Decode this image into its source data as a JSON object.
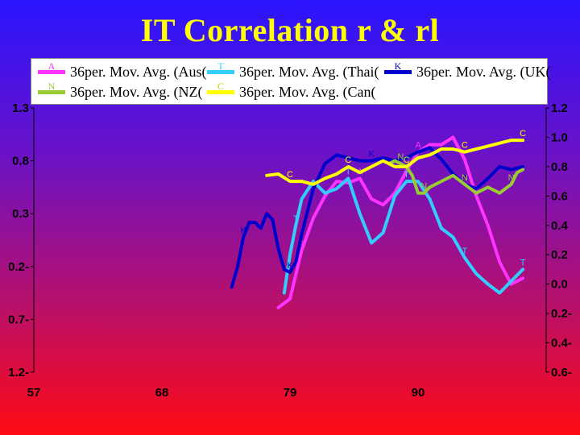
{
  "title": "IT Correlation r & rl",
  "legend": [
    {
      "label": "36per. Mov. Avg. (Aus(",
      "color": "#ff33ff",
      "marker": "A"
    },
    {
      "label": "36per. Mov. Avg. (Thai(",
      "color": "#33ccff",
      "marker": "T"
    },
    {
      "label": "36per. Mov. Avg. (UK(",
      "color": "#0000cc",
      "marker": "K"
    },
    {
      "label": "36per. Mov. Avg. (NZ(",
      "color": "#99cc33",
      "marker": "N"
    },
    {
      "label": "36per. Mov. Avg. (Can(",
      "color": "#ffff00",
      "marker": "C"
    }
  ],
  "chart_data": {
    "type": "line",
    "title": "IT Correlation r & rl",
    "left_axis_ticks": [
      "1.3",
      "0.8",
      "0.3",
      "0.2-",
      "0.7-",
      "1.2-"
    ],
    "right_axis_ticks": [
      "1.2",
      "1.0",
      "0.8",
      "0.6",
      "0.4",
      "0.2",
      "0.0",
      "0.2-",
      "0.4-",
      "0.6-"
    ],
    "x_tick_labels": [
      "57",
      "68",
      "79",
      "90"
    ],
    "right_axis_range": [
      -0.6,
      1.2
    ],
    "series": [
      {
        "name": "36per. Mov. Avg. (Aus(",
        "color": "#ff33ff",
        "marker": "A",
        "x": [
          78.0,
          79.0,
          80.0,
          81.0,
          82.0,
          83.0,
          84.0,
          85.0,
          86.0,
          87.0,
          88.0,
          89.0,
          90.0,
          91.0,
          92.0,
          93.0,
          94.0,
          95.0,
          96.0,
          97.0,
          98.0,
          99.0
        ],
        "y": [
          -0.16,
          -0.1,
          0.23,
          0.45,
          0.6,
          0.7,
          0.69,
          0.72,
          0.58,
          0.54,
          0.62,
          0.77,
          0.9,
          0.95,
          0.95,
          1.0,
          0.85,
          0.6,
          0.4,
          0.15,
          0.0,
          0.04
        ]
      },
      {
        "name": "36per. Mov. Avg. (Thai(",
        "color": "#33ccff",
        "marker": "T",
        "x": [
          78.5,
          79.0,
          79.5,
          80.0,
          81.0,
          82.0,
          83.0,
          84.0,
          85.0,
          86.0,
          87.0,
          88.0,
          89.0,
          90.0,
          91.0,
          92.0,
          93.0,
          94.0,
          95.0,
          96.0,
          97.0,
          98.0,
          99.0
        ],
        "y": [
          -0.06,
          0.2,
          0.4,
          0.58,
          0.7,
          0.62,
          0.65,
          0.72,
          0.48,
          0.28,
          0.35,
          0.6,
          0.7,
          0.7,
          0.58,
          0.38,
          0.32,
          0.18,
          0.07,
          0.0,
          -0.06,
          0.02,
          0.1
        ]
      },
      {
        "name": "36per. Mov. Avg. (UK(",
        "color": "#0000cc",
        "marker": "K",
        "x": [
          74.0,
          74.5,
          75.0,
          75.5,
          76.0,
          76.5,
          77.0,
          77.5,
          78.0,
          78.5,
          79.0,
          79.5,
          80.0,
          81.0,
          82.0,
          83.0,
          84.0,
          85.0,
          86.0,
          87.0,
          88.0,
          89.0,
          90.0,
          91.0,
          92.0,
          93.0,
          94.0,
          95.0,
          96.0,
          97.0,
          98.0,
          99.0
        ],
        "y": [
          -0.02,
          0.12,
          0.32,
          0.42,
          0.42,
          0.38,
          0.48,
          0.44,
          0.24,
          0.1,
          0.08,
          0.15,
          0.34,
          0.65,
          0.82,
          0.88,
          0.86,
          0.84,
          0.84,
          0.86,
          0.84,
          0.86,
          0.9,
          0.93,
          0.85,
          0.75,
          0.68,
          0.65,
          0.72,
          0.8,
          0.78,
          0.8
        ]
      },
      {
        "name": "36per. Mov. Avg. (NZ(",
        "color": "#99cc33",
        "marker": "N",
        "x": [
          87.5,
          88.0,
          88.5,
          89.0,
          89.5,
          90.0,
          90.5,
          91.0,
          92.0,
          93.0,
          94.0,
          95.0,
          96.0,
          97.0,
          98.0,
          98.5,
          99.0
        ],
        "y": [
          0.82,
          0.84,
          0.82,
          0.8,
          0.74,
          0.62,
          0.62,
          0.66,
          0.7,
          0.74,
          0.68,
          0.62,
          0.66,
          0.62,
          0.68,
          0.76,
          0.78
        ]
      },
      {
        "name": "36per. Mov. Avg. (Can(",
        "color": "#ffff00",
        "marker": "C",
        "x": [
          77.0,
          78.0,
          79.0,
          80.0,
          81.0,
          82.0,
          83.0,
          84.0,
          85.0,
          86.0,
          87.0,
          88.0,
          89.0,
          90.0,
          91.0,
          92.0,
          93.0,
          94.0,
          95.0,
          96.0,
          97.0,
          98.0,
          99.0
        ],
        "y": [
          0.74,
          0.75,
          0.7,
          0.7,
          0.68,
          0.72,
          0.75,
          0.8,
          0.76,
          0.8,
          0.84,
          0.8,
          0.8,
          0.86,
          0.88,
          0.92,
          0.92,
          0.9,
          0.92,
          0.94,
          0.96,
          0.98,
          0.98
        ]
      }
    ]
  }
}
